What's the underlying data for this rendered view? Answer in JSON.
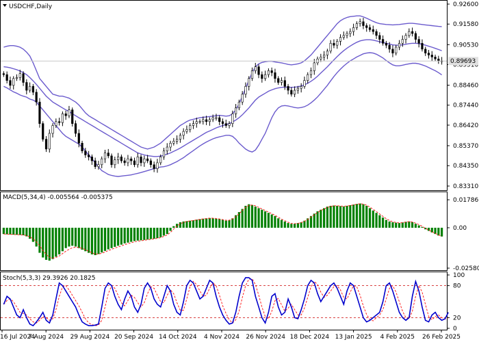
{
  "chart_data": [
    {
      "type": "candlestick",
      "title": "USDCHF,Daily",
      "current_price": "0.89693",
      "y_ticks": [
        "0.92600",
        "0.91580",
        "0.90530",
        "0.89510",
        "0.88460",
        "0.87440",
        "0.86420",
        "0.85370",
        "0.84350",
        "0.83310"
      ],
      "x_ticks": [
        "16 Jul 2024",
        "7 Aug 2024",
        "29 Aug 2024",
        "20 Sep 2024",
        "14 Oct 2024",
        "4 Nov 2024",
        "26 Nov 2024",
        "18 Dec 2024",
        "13 Jan 2025",
        "4 Feb 2025",
        "26 Feb 2025"
      ],
      "ylim": [
        0.8331,
        0.926
      ],
      "close": [
        0.89,
        0.887,
        0.8845,
        0.888,
        0.8885,
        0.8905,
        0.886,
        0.882,
        0.884,
        0.881,
        0.876,
        0.865,
        0.857,
        0.852,
        0.86,
        0.864,
        0.866,
        0.8655,
        0.87,
        0.869,
        0.872,
        0.865,
        0.86,
        0.855,
        0.851,
        0.849,
        0.848,
        0.846,
        0.843,
        0.844,
        0.847,
        0.85,
        0.8485,
        0.844,
        0.8465,
        0.848,
        0.846,
        0.845,
        0.847,
        0.846,
        0.844,
        0.848,
        0.845,
        0.847,
        0.846,
        0.844,
        0.842,
        0.845,
        0.848,
        0.851,
        0.853,
        0.855,
        0.856,
        0.857,
        0.859,
        0.861,
        0.862,
        0.864,
        0.865,
        0.866,
        0.866,
        0.867,
        0.866,
        0.867,
        0.868,
        0.868,
        0.866,
        0.865,
        0.864,
        0.865,
        0.87,
        0.873,
        0.876,
        0.88,
        0.884,
        0.888,
        0.892,
        0.894,
        0.89,
        0.888,
        0.89,
        0.892,
        0.891,
        0.888,
        0.886,
        0.887,
        0.884,
        0.882,
        0.88,
        0.882,
        0.883,
        0.884,
        0.887,
        0.89,
        0.892,
        0.896,
        0.898,
        0.899,
        0.9,
        0.902,
        0.906,
        0.905,
        0.907,
        0.909,
        0.91,
        0.911,
        0.912,
        0.914,
        0.916,
        0.917,
        0.915,
        0.914,
        0.913,
        0.912,
        0.91,
        0.908,
        0.906,
        0.905,
        0.903,
        0.901,
        0.904,
        0.906,
        0.908,
        0.91,
        0.912,
        0.911,
        0.908,
        0.906,
        0.903,
        0.901,
        0.9,
        0.899,
        0.898,
        0.897,
        0.8969
      ],
      "upper_band": [
        0.904,
        0.9045,
        0.9048,
        0.9048,
        0.9045,
        0.904,
        0.903,
        0.9015,
        0.8995,
        0.896,
        0.892,
        0.888,
        0.886,
        0.884,
        0.882,
        0.88,
        0.8795,
        0.879,
        0.879,
        0.8785,
        0.878,
        0.877,
        0.876,
        0.8745,
        0.8725,
        0.8705,
        0.869,
        0.868,
        0.867,
        0.866,
        0.865,
        0.864,
        0.863,
        0.862,
        0.861,
        0.86,
        0.859,
        0.858,
        0.857,
        0.856,
        0.855,
        0.854,
        0.853,
        0.8525,
        0.852,
        0.8525,
        0.853,
        0.854,
        0.855,
        0.8565,
        0.858,
        0.8595,
        0.861,
        0.8625,
        0.864,
        0.865,
        0.866,
        0.8668,
        0.8672,
        0.8676,
        0.868,
        0.8682,
        0.8684,
        0.8686,
        0.8688,
        0.869,
        0.8692,
        0.869,
        0.8688,
        0.869,
        0.87,
        0.872,
        0.875,
        0.879,
        0.883,
        0.887,
        0.891,
        0.894,
        0.8955,
        0.8962,
        0.8966,
        0.8968,
        0.8968,
        0.8965,
        0.8962,
        0.896,
        0.8956,
        0.8952,
        0.895,
        0.8952,
        0.8955,
        0.896,
        0.897,
        0.8985,
        0.9,
        0.902,
        0.904,
        0.906,
        0.908,
        0.91,
        0.912,
        0.914,
        0.916,
        0.9175,
        0.9185,
        0.9192,
        0.9196,
        0.9198,
        0.92,
        0.92,
        0.9195,
        0.9188,
        0.918,
        0.9172,
        0.9165,
        0.916,
        0.9158,
        0.9156,
        0.9155,
        0.9154,
        0.9155,
        0.9156,
        0.9158,
        0.916,
        0.9162,
        0.9162,
        0.916,
        0.9158,
        0.9156,
        0.9154,
        0.9152,
        0.915,
        0.9148,
        0.9146,
        0.9145
      ],
      "middle_band": [
        0.894,
        0.8938,
        0.8935,
        0.893,
        0.8925,
        0.8918,
        0.891,
        0.89,
        0.8885,
        0.8868,
        0.885,
        0.883,
        0.881,
        0.879,
        0.8775,
        0.876,
        0.875,
        0.874,
        0.873,
        0.872,
        0.8712,
        0.87,
        0.869,
        0.868,
        0.867,
        0.866,
        0.865,
        0.864,
        0.863,
        0.862,
        0.861,
        0.86,
        0.859,
        0.858,
        0.857,
        0.856,
        0.855,
        0.854,
        0.853,
        0.852,
        0.851,
        0.85,
        0.8495,
        0.849,
        0.8486,
        0.8484,
        0.8482,
        0.8482,
        0.8484,
        0.8488,
        0.8494,
        0.85,
        0.8508,
        0.8516,
        0.8525,
        0.8535,
        0.8545,
        0.8555,
        0.8565,
        0.8575,
        0.8585,
        0.8595,
        0.8605,
        0.8612,
        0.862,
        0.8628,
        0.8634,
        0.864,
        0.8645,
        0.865,
        0.8658,
        0.8668,
        0.868,
        0.8695,
        0.8712,
        0.873,
        0.875,
        0.877,
        0.8785,
        0.8795,
        0.8805,
        0.8815,
        0.8822,
        0.8828,
        0.8832,
        0.8835,
        0.8836,
        0.8836,
        0.8835,
        0.8836,
        0.8838,
        0.8842,
        0.8848,
        0.8856,
        0.8866,
        0.8878,
        0.8892,
        0.8908,
        0.8924,
        0.894,
        0.8958,
        0.8975,
        0.8992,
        0.9008,
        0.9022,
        0.9035,
        0.9046,
        0.9056,
        0.9065,
        0.9072,
        0.9076,
        0.9078,
        0.9078,
        0.9076,
        0.9072,
        0.9068,
        0.9064,
        0.906,
        0.9056,
        0.9052,
        0.905,
        0.905,
        0.9052,
        0.9055,
        0.9058,
        0.906,
        0.906,
        0.9058,
        0.9055,
        0.905,
        0.9045,
        0.904,
        0.9034,
        0.9028,
        0.9022
      ],
      "lower_band": [
        0.884,
        0.8832,
        0.8822,
        0.8812,
        0.8805,
        0.8796,
        0.879,
        0.8785,
        0.8775,
        0.877,
        0.876,
        0.874,
        0.872,
        0.87,
        0.868,
        0.866,
        0.864,
        0.862,
        0.86,
        0.8585,
        0.8575,
        0.8565,
        0.8555,
        0.8545,
        0.853,
        0.851,
        0.849,
        0.847,
        0.845,
        0.843,
        0.841,
        0.84,
        0.839,
        0.8385,
        0.8382,
        0.838,
        0.8382,
        0.8384,
        0.8386,
        0.8388,
        0.8392,
        0.8396,
        0.84,
        0.8405,
        0.841,
        0.8415,
        0.842,
        0.8425,
        0.8428,
        0.843,
        0.8434,
        0.844,
        0.8448,
        0.8456,
        0.8466,
        0.8476,
        0.8488,
        0.85,
        0.8512,
        0.8524,
        0.8536,
        0.8546,
        0.8556,
        0.8564,
        0.8572,
        0.8578,
        0.8582,
        0.8586,
        0.859,
        0.859,
        0.8585,
        0.857,
        0.855,
        0.8535,
        0.852,
        0.851,
        0.8505,
        0.8515,
        0.854,
        0.857,
        0.86,
        0.864,
        0.868,
        0.871,
        0.873,
        0.874,
        0.8742,
        0.874,
        0.8736,
        0.8732,
        0.873,
        0.8732,
        0.8736,
        0.8744,
        0.8756,
        0.877,
        0.8786,
        0.8805,
        0.8825,
        0.8845,
        0.8868,
        0.889,
        0.891,
        0.8928,
        0.8944,
        0.8958,
        0.897,
        0.898,
        0.899,
        0.8998,
        0.9006,
        0.901,
        0.9012,
        0.901,
        0.9004,
        0.8995,
        0.8985,
        0.8972,
        0.896,
        0.895,
        0.8945,
        0.8945,
        0.8948,
        0.8952,
        0.8955,
        0.8958,
        0.8958,
        0.8955,
        0.895,
        0.8944,
        0.8936,
        0.8928,
        0.892,
        0.891,
        0.8899
      ]
    },
    {
      "type": "bar",
      "title": "MACD(5,34,4) -0.005564 -0.005375",
      "y_ticks": [
        "0.017866",
        "0.00",
        "-0.025807"
      ],
      "ylim": [
        -0.0258,
        0.0179
      ],
      "values": [
        -0.004,
        -0.0042,
        -0.0043,
        -0.0044,
        -0.0045,
        -0.0046,
        -0.0048,
        -0.0055,
        -0.007,
        -0.009,
        -0.012,
        -0.016,
        -0.019,
        -0.0205,
        -0.021,
        -0.02,
        -0.0185,
        -0.017,
        -0.015,
        -0.013,
        -0.012,
        -0.0115,
        -0.012,
        -0.013,
        -0.014,
        -0.015,
        -0.016,
        -0.017,
        -0.0175,
        -0.0168,
        -0.0158,
        -0.0148,
        -0.0138,
        -0.013,
        -0.0122,
        -0.0115,
        -0.0108,
        -0.01,
        -0.0095,
        -0.009,
        -0.0085,
        -0.0082,
        -0.008,
        -0.0078,
        -0.0075,
        -0.0072,
        -0.007,
        -0.0066,
        -0.006,
        -0.005,
        -0.004,
        -0.002,
        0.001,
        0.0025,
        0.0035,
        0.004,
        0.0042,
        0.0045,
        0.0048,
        0.0052,
        0.0055,
        0.0058,
        0.006,
        0.0062,
        0.006,
        0.0058,
        0.0055,
        0.005,
        0.0045,
        0.0048,
        0.006,
        0.008,
        0.01,
        0.012,
        0.014,
        0.015,
        0.0145,
        0.0135,
        0.0125,
        0.0115,
        0.0105,
        0.0095,
        0.0085,
        0.0075,
        0.006,
        0.005,
        0.004,
        0.003,
        0.0025,
        0.0025,
        0.003,
        0.0035,
        0.0045,
        0.006,
        0.0075,
        0.009,
        0.0105,
        0.0115,
        0.0125,
        0.0135,
        0.014,
        0.0142,
        0.014,
        0.0138,
        0.0136,
        0.014,
        0.0144,
        0.0148,
        0.0152,
        0.0155,
        0.015,
        0.014,
        0.0125,
        0.011,
        0.0095,
        0.008,
        0.0065,
        0.005,
        0.004,
        0.0035,
        0.0032,
        0.003,
        0.0034,
        0.0038,
        0.004,
        0.0035,
        0.0025,
        0.0015,
        0.0005,
        -0.001,
        -0.002,
        -0.003,
        -0.004,
        -0.005,
        -0.0056
      ],
      "signal": [
        -0.004,
        -0.0041,
        -0.0042,
        -0.0043,
        -0.0044,
        -0.0045,
        -0.0046,
        -0.005,
        -0.0058,
        -0.007,
        -0.009,
        -0.0115,
        -0.0145,
        -0.017,
        -0.019,
        -0.0195,
        -0.019,
        -0.018,
        -0.0165,
        -0.015,
        -0.0138,
        -0.0128,
        -0.0124,
        -0.0126,
        -0.0132,
        -0.014,
        -0.015,
        -0.016,
        -0.0168,
        -0.0168,
        -0.0163,
        -0.0155,
        -0.0146,
        -0.0138,
        -0.013,
        -0.0123,
        -0.0116,
        -0.0108,
        -0.0102,
        -0.0096,
        -0.009,
        -0.0086,
        -0.0083,
        -0.008,
        -0.0077,
        -0.0074,
        -0.0071,
        -0.0068,
        -0.0063,
        -0.0055,
        -0.0046,
        -0.003,
        -0.0008,
        0.001,
        0.0025,
        0.0035,
        0.004,
        0.0043,
        0.0046,
        0.005,
        0.0053,
        0.0056,
        0.0059,
        0.0061,
        0.0061,
        0.0059,
        0.0056,
        0.0052,
        0.0048,
        0.0048,
        0.0056,
        0.007,
        0.009,
        0.011,
        0.013,
        0.0143,
        0.0145,
        0.014,
        0.013,
        0.012,
        0.011,
        0.01,
        0.009,
        0.008,
        0.0067,
        0.0055,
        0.0045,
        0.0035,
        0.0028,
        0.0026,
        0.0028,
        0.0033,
        0.0041,
        0.0053,
        0.0068,
        0.0083,
        0.0098,
        0.011,
        0.012,
        0.013,
        0.0136,
        0.014,
        0.014,
        0.0139,
        0.0137,
        0.0139,
        0.0142,
        0.0146,
        0.015,
        0.0153,
        0.0151,
        0.0144,
        0.0132,
        0.0118,
        0.0103,
        0.0088,
        0.0073,
        0.0058,
        0.0046,
        0.0038,
        0.0034,
        0.0031,
        0.0033,
        0.0036,
        0.0039,
        0.0037,
        0.0029,
        0.002,
        0.001,
        -0.0004,
        -0.0015,
        -0.0026,
        -0.0036,
        -0.0046,
        -0.0054
      ]
    },
    {
      "type": "line",
      "title": "Stoch(5,3,3) 29.3926 20.1825",
      "y_ticks": [
        "100",
        "80",
        "20",
        "0"
      ],
      "ylim": [
        0,
        100
      ],
      "levels": [
        80,
        20
      ],
      "main": [
        45,
        60,
        55,
        40,
        25,
        20,
        35,
        20,
        8,
        5,
        12,
        20,
        30,
        15,
        10,
        25,
        55,
        85,
        80,
        70,
        60,
        50,
        40,
        25,
        12,
        8,
        5,
        5,
        6,
        8,
        40,
        75,
        85,
        80,
        60,
        45,
        35,
        55,
        70,
        60,
        40,
        30,
        45,
        75,
        85,
        75,
        55,
        45,
        40,
        60,
        80,
        70,
        45,
        30,
        25,
        50,
        80,
        90,
        85,
        70,
        55,
        60,
        75,
        90,
        85,
        60,
        40,
        25,
        15,
        8,
        10,
        30,
        60,
        85,
        95,
        95,
        90,
        60,
        40,
        20,
        10,
        30,
        60,
        65,
        40,
        25,
        30,
        55,
        40,
        20,
        18,
        35,
        55,
        80,
        90,
        85,
        65,
        50,
        60,
        70,
        80,
        85,
        75,
        60,
        45,
        70,
        85,
        80,
        60,
        40,
        20,
        12,
        15,
        20,
        25,
        30,
        50,
        80,
        85,
        70,
        50,
        30,
        20,
        15,
        20,
        60,
        88,
        70,
        40,
        15,
        12,
        25,
        30,
        20,
        15,
        18,
        30
      ],
      "signal": [
        45,
        52,
        55,
        50,
        40,
        30,
        28,
        25,
        18,
        12,
        10,
        15,
        22,
        20,
        15,
        18,
        35,
        60,
        78,
        80,
        72,
        62,
        52,
        42,
        30,
        18,
        10,
        7,
        5,
        6,
        15,
        40,
        65,
        80,
        75,
        62,
        48,
        42,
        52,
        62,
        58,
        48,
        40,
        48,
        65,
        78,
        75,
        62,
        50,
        48,
        62,
        72,
        65,
        48,
        34,
        34,
        55,
        78,
        88,
        82,
        70,
        60,
        62,
        75,
        85,
        80,
        62,
        42,
        28,
        16,
        10,
        16,
        32,
        58,
        80,
        92,
        93,
        82,
        62,
        40,
        22,
        18,
        32,
        52,
        56,
        44,
        32,
        38,
        45,
        35,
        25,
        25,
        38,
        58,
        78,
        88,
        82,
        68,
        58,
        62,
        70,
        78,
        80,
        72,
        58,
        55,
        68,
        80,
        78,
        62,
        42,
        26,
        16,
        14,
        20,
        25,
        35,
        55,
        75,
        80,
        68,
        50,
        32,
        20,
        18,
        32,
        60,
        80,
        68,
        45,
        22,
        16,
        22,
        25,
        20,
        17,
        20
      ]
    }
  ]
}
